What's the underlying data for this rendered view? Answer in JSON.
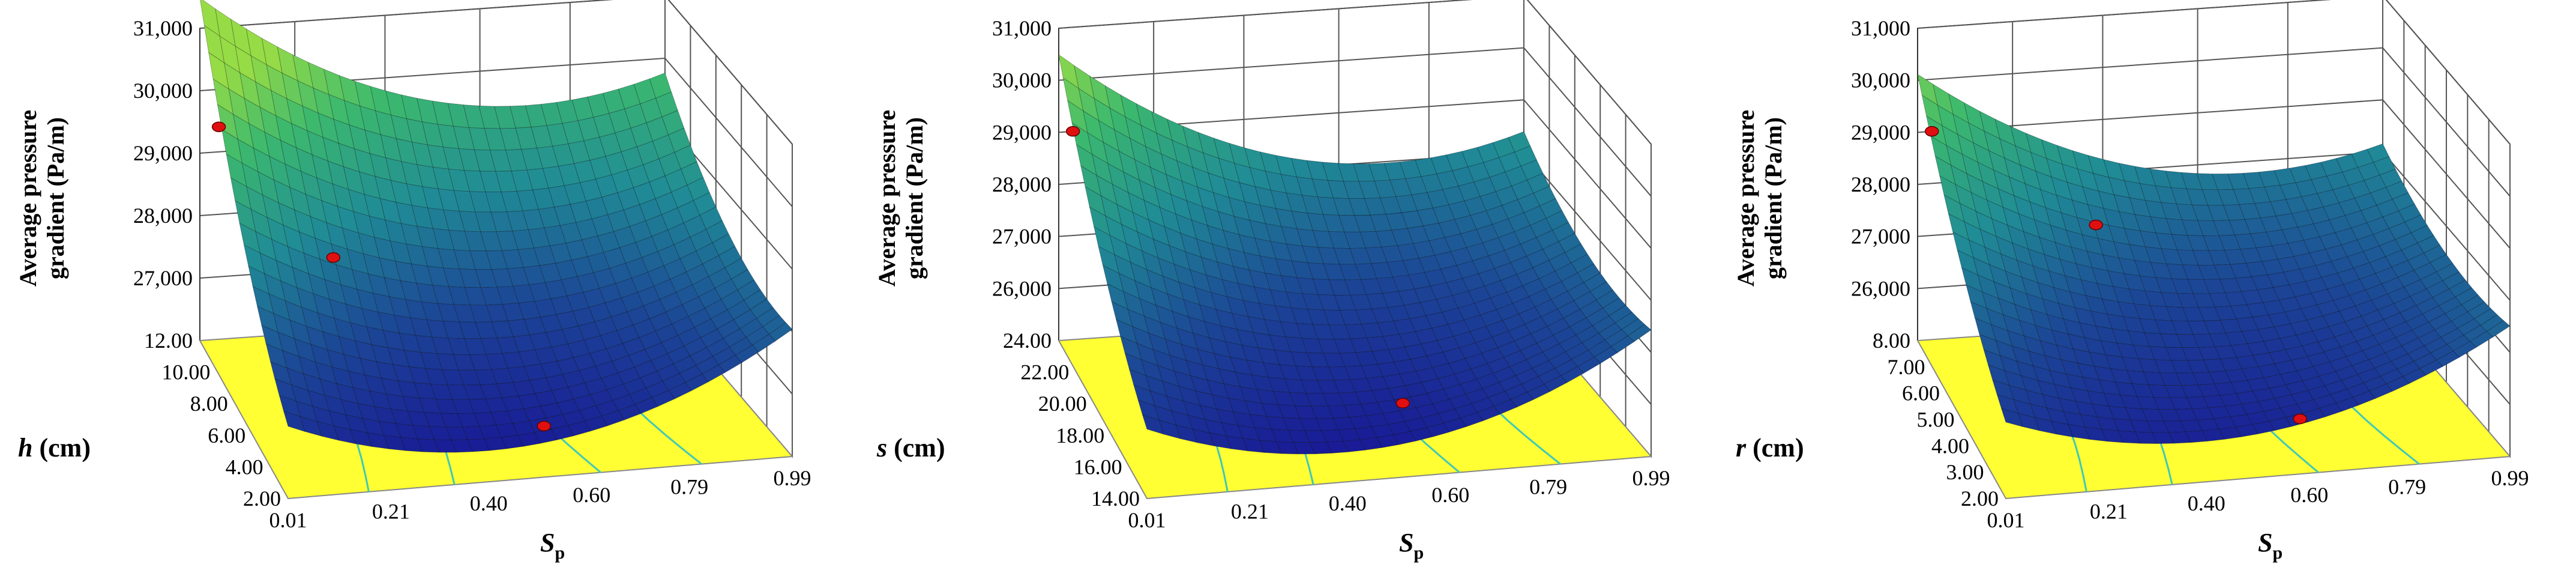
{
  "chart_data": [
    {
      "type": "surface3d",
      "zlabel_line1": "Average pressure",
      "zlabel_line2": "gradient (Pa/m)",
      "z_ticks": [
        "27,000",
        "28,000",
        "29,000",
        "30,000",
        "31,000"
      ],
      "z_tick_values": [
        27000,
        28000,
        29000,
        30000,
        31000
      ],
      "zlim": [
        26000,
        31000
      ],
      "x_label_main": "S",
      "x_label_sub": "p",
      "x_ticks": [
        "0.01",
        "0.21",
        "0.40",
        "0.60",
        "0.79",
        "0.99"
      ],
      "x_tick_values": [
        0.01,
        0.21,
        0.4,
        0.6,
        0.79,
        0.99
      ],
      "y_label_main": "h",
      "y_label_unit": " (cm)",
      "y_ticks": [
        "2.00",
        "4.00",
        "6.00",
        "8.00",
        "10.00",
        "12.00"
      ],
      "y_tick_values": [
        2,
        4,
        6,
        8,
        10,
        12
      ],
      "surface": {
        "c": 26600,
        "ax": 4200,
        "bx": -2600,
        "ay": 2100,
        "by": 800
      },
      "points": [
        {
          "x": 0.05,
          "y": 12.0,
          "z": 29400
        },
        {
          "x": 0.25,
          "y": 10.0,
          "z": 27700
        },
        {
          "x": 0.55,
          "y": 4.0,
          "z": 26300
        }
      ]
    },
    {
      "type": "surface3d",
      "zlabel_line1": "Average pressure",
      "zlabel_line2": "gradient (Pa/m)",
      "z_ticks": [
        "26,000",
        "27,000",
        "28,000",
        "29,000",
        "30,000",
        "31,000"
      ],
      "z_tick_values": [
        26000,
        27000,
        28000,
        29000,
        30000,
        31000
      ],
      "zlim": [
        25000,
        31000
      ],
      "x_label_main": "S",
      "x_label_sub": "p",
      "x_ticks": [
        "0.01",
        "0.21",
        "0.40",
        "0.60",
        "0.79",
        "0.99"
      ],
      "x_tick_values": [
        0.01,
        0.21,
        0.4,
        0.6,
        0.79,
        0.99
      ],
      "y_label_main": "s",
      "y_label_unit": " (cm)",
      "y_ticks": [
        "14.00",
        "16.00",
        "18.00",
        "20.00",
        "22.00",
        "24.00"
      ],
      "y_tick_values": [
        14,
        16,
        18,
        20,
        22,
        24
      ],
      "surface": {
        "c": 25700,
        "ax": 5000,
        "bx": -3200,
        "ay": 1800,
        "by": 600
      },
      "points": [
        {
          "x": 0.04,
          "y": 24.0,
          "z": 29000
        },
        {
          "x": 0.55,
          "y": 16.0,
          "z": 25800
        }
      ]
    },
    {
      "type": "surface3d",
      "zlabel_line1": "Average pressure",
      "zlabel_line2": "gradient (Pa/m)",
      "z_ticks": [
        "26,000",
        "27,000",
        "28,000",
        "29,000",
        "30,000",
        "31,000"
      ],
      "z_tick_values": [
        26000,
        27000,
        28000,
        29000,
        30000,
        31000
      ],
      "zlim": [
        25000,
        31000
      ],
      "x_label_main": "S",
      "x_label_sub": "p",
      "x_ticks": [
        "0.01",
        "0.21",
        "0.40",
        "0.60",
        "0.79",
        "0.99"
      ],
      "x_tick_values": [
        0.01,
        0.21,
        0.4,
        0.6,
        0.79,
        0.99
      ],
      "y_label_main": "r",
      "y_label_unit": " (cm)",
      "y_ticks": [
        "2.00",
        "3.00",
        "4.00",
        "5.00",
        "6.00",
        "7.00",
        "8.00"
      ],
      "y_tick_values": [
        2,
        3,
        4,
        5,
        6,
        7,
        8
      ],
      "surface": {
        "c": 25900,
        "ax": 4600,
        "bx": -3000,
        "ay": 1500,
        "by": 500
      },
      "points": [
        {
          "x": 0.04,
          "y": 8.0,
          "z": 29000
        },
        {
          "x": 0.35,
          "y": 7.0,
          "z": 27500
        },
        {
          "x": 0.6,
          "y": 2.5,
          "z": 25800
        }
      ]
    }
  ]
}
